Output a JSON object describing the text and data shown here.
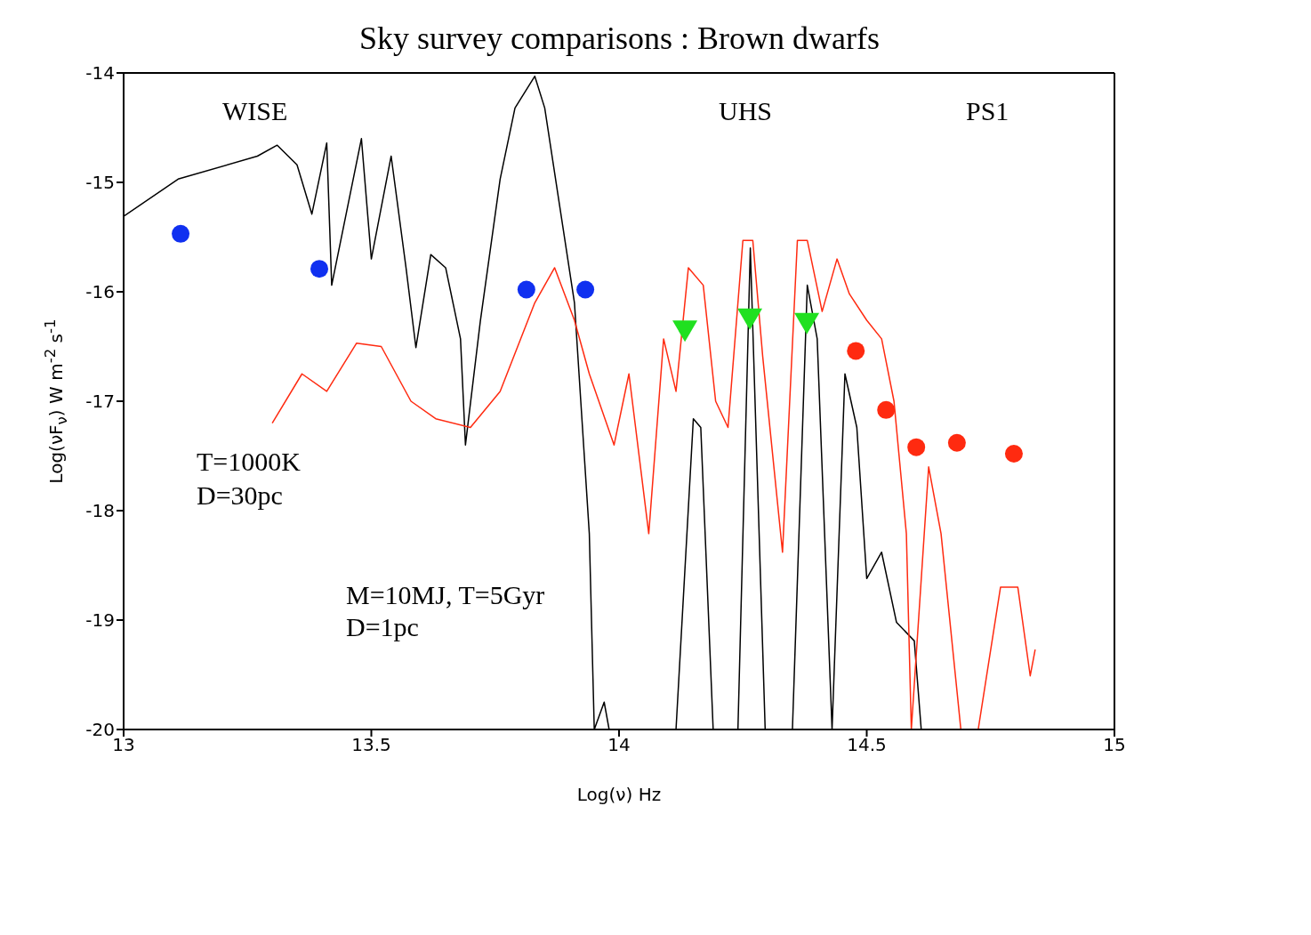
{
  "chart_data": {
    "type": "line",
    "title": "Sky survey comparisons : Brown dwarfs",
    "xlabel": "Log(ν) Hz",
    "ylabel": "Log(νF$_{ν}$) W m$^{-2}$ s$^{-1}$",
    "xlim": [
      13,
      15
    ],
    "ylim": [
      -20,
      -14
    ],
    "xticks": [
      13,
      13.5,
      14,
      14.5,
      15
    ],
    "yticks": [
      -20,
      -19,
      -18,
      -17,
      -16,
      -15,
      -14
    ],
    "grid": false,
    "line_style": "solid",
    "annotations": [
      "WISE",
      "UHS",
      "PS1",
      "T=1000K",
      "D=30pc",
      "M=10MJ, T=5Gyr",
      "D=1pc"
    ],
    "series": [
      {
        "color": "#000000",
        "marker": "none",
        "x": [
          13,
          13.11,
          13.27,
          13.31,
          13.35,
          13.38,
          13.41,
          13.42,
          13.48,
          13.5,
          13.54,
          13.57,
          13.59,
          13.62,
          13.65,
          13.68,
          13.69,
          13.72,
          13.76,
          13.79,
          13.83,
          13.85,
          13.88,
          13.91,
          13.94,
          13.95,
          13.97,
          13.98,
          14.115,
          14.15,
          14.165,
          14.19,
          14.24,
          14.265,
          14.295,
          14.35,
          14.38,
          14.4,
          14.43,
          14.456,
          14.48,
          14.5,
          14.53,
          14.56,
          14.596,
          14.61
        ],
        "values": [
          -15.31,
          -14.97,
          -14.76,
          -14.66,
          -14.84,
          -15.29,
          -14.64,
          -15.94,
          -14.6,
          -15.7,
          -14.76,
          -15.78,
          -16.51,
          -15.66,
          -15.78,
          -16.43,
          -17.4,
          -16.27,
          -14.97,
          -14.32,
          -14.03,
          -14.32,
          -15.21,
          -16.1,
          -18.21,
          -20,
          -19.75,
          -20,
          -20,
          -17.16,
          -17.24,
          -20,
          -20,
          -15.6,
          -20,
          -20,
          -15.94,
          -16.43,
          -20,
          -16.75,
          -17.24,
          -18.62,
          -18.38,
          -19.02,
          -19.19,
          -20
        ]
      },
      {
        "color": "#ff2a10",
        "marker": "none",
        "x": [
          13.3,
          13.36,
          13.41,
          13.47,
          13.52,
          13.58,
          13.63,
          13.7,
          13.76,
          13.83,
          13.87,
          13.91,
          13.94,
          13.99,
          14.02,
          14.06,
          14.09,
          14.115,
          14.14,
          14.17,
          14.195,
          14.22,
          14.25,
          14.27,
          14.29,
          14.33,
          14.36,
          14.38,
          14.41,
          14.44,
          14.465,
          14.5,
          14.53,
          14.555,
          14.58,
          14.59,
          14.625,
          14.65,
          14.69,
          14.725,
          14.77,
          14.805,
          14.83,
          14.84
        ],
        "values": [
          -17.2,
          -16.75,
          -16.91,
          -16.47,
          -16.5,
          -17.0,
          -17.16,
          -17.24,
          -16.91,
          -16.1,
          -15.78,
          -16.26,
          -16.75,
          -17.4,
          -16.75,
          -18.21,
          -16.43,
          -16.91,
          -15.78,
          -15.94,
          -17.0,
          -17.24,
          -15.53,
          -15.53,
          -16.59,
          -18.38,
          -15.53,
          -15.53,
          -16.18,
          -15.7,
          -16.02,
          -16.26,
          -16.43,
          -17.0,
          -18.21,
          -20,
          -17.6,
          -18.21,
          -20,
          -20,
          -18.7,
          -18.7,
          -19.51,
          -19.27
        ]
      },
      {
        "type": "scatter",
        "color": "#1030f0",
        "marker": "circle",
        "x": [
          13.115,
          13.395,
          13.813,
          13.932
        ],
        "values": [
          -15.47,
          -15.79,
          -15.98,
          -15.98
        ]
      },
      {
        "type": "scatter",
        "color": "#20e020",
        "marker": "triangle",
        "x": [
          14.133,
          14.264,
          14.379
        ],
        "values": [
          -16.36,
          -16.25,
          -16.29
        ]
      },
      {
        "type": "scatter",
        "color": "#ff2a10",
        "marker": "circle",
        "x": [
          14.478,
          14.539,
          14.6,
          14.682,
          14.797
        ],
        "values": [
          -16.54,
          -17.08,
          -17.42,
          -17.38,
          -17.48
        ]
      }
    ]
  }
}
